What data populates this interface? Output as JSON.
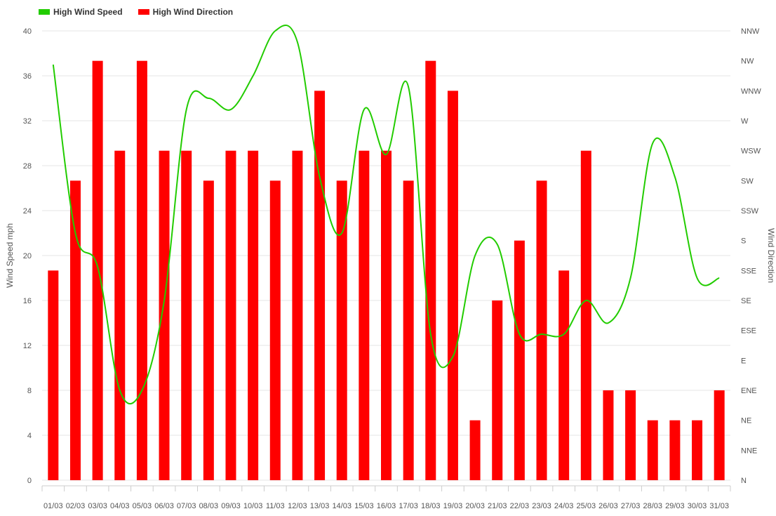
{
  "chart_data": {
    "type": "bar",
    "legend": {
      "placement": "top-left",
      "items": [
        {
          "label": "High Wind Speed",
          "color": "#22cc00"
        },
        {
          "label": "High Wind Direction",
          "color": "#ff0000"
        }
      ]
    },
    "ylabel_left": "Wind Speed mph",
    "ylabel_right": "Wind Direction",
    "ylim_left": [
      0,
      40
    ],
    "yticks_left": [
      "0",
      "4",
      "8",
      "12",
      "16",
      "20",
      "24",
      "28",
      "32",
      "36",
      "40"
    ],
    "yticks_right": [
      "N",
      "NNE",
      "NE",
      "ENE",
      "E",
      "ESE",
      "SE",
      "SSE",
      "S",
      "SSW",
      "SW",
      "WSW",
      "W",
      "WNW",
      "NW",
      "NNW"
    ],
    "categories": [
      "01/03",
      "02/03",
      "03/03",
      "04/03",
      "05/03",
      "06/03",
      "07/03",
      "08/03",
      "09/03",
      "10/03",
      "11/03",
      "12/03",
      "13/03",
      "14/03",
      "15/03",
      "16/03",
      "17/03",
      "18/03",
      "19/03",
      "20/03",
      "21/03",
      "22/03",
      "23/03",
      "24/03",
      "25/03",
      "26/03",
      "27/03",
      "28/03",
      "29/03",
      "30/03",
      "31/03"
    ],
    "grid": true,
    "series": [
      {
        "name": "High Wind Speed",
        "type": "line",
        "axis": "left",
        "color": "#22cc00",
        "values": [
          37,
          22,
          19,
          8,
          8,
          16,
          33,
          34,
          33,
          36,
          40,
          39,
          27,
          22,
          33,
          29,
          35,
          13,
          11,
          20,
          21,
          13,
          13,
          13,
          16,
          14,
          18,
          30,
          27,
          18,
          18
        ]
      },
      {
        "name": "High Wind Direction",
        "type": "bar",
        "axis": "right",
        "color": "#ff0000",
        "values": [
          "SSE",
          "SW",
          "NW",
          "WSW",
          "NW",
          "WSW",
          "WSW",
          "SW",
          "WSW",
          "WSW",
          "SW",
          "WSW",
          "WNW",
          "SW",
          "WSW",
          "WSW",
          "SW",
          "NW",
          "WNW",
          "NE",
          "SE",
          "S",
          "SW",
          "SSE",
          "WSW",
          "ENE",
          "ENE",
          "NE",
          "NE",
          "NE",
          "ENE"
        ]
      }
    ]
  }
}
